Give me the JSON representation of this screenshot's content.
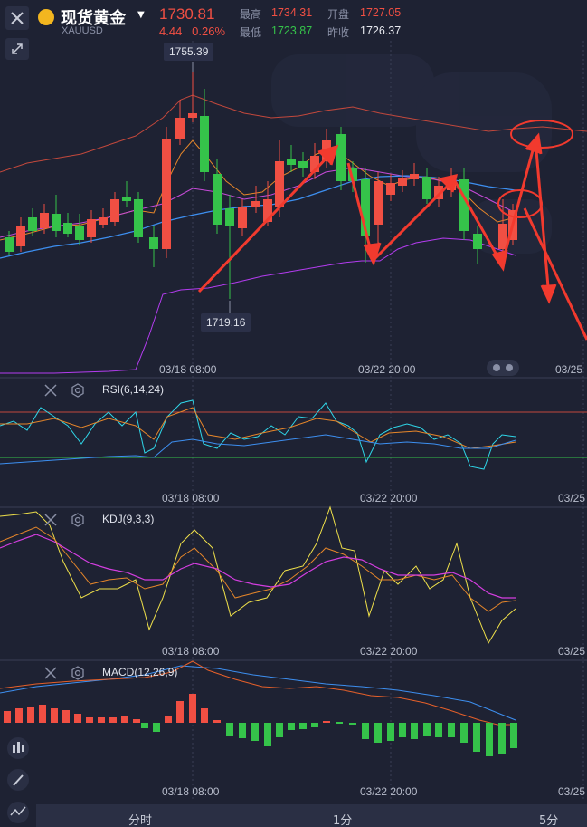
{
  "header": {
    "title": "现货黄金",
    "symbol": "XAUUSD",
    "price": "1730.81",
    "change": "4.44",
    "change_pct": "0.26%",
    "high_label": "最高",
    "high": "1734.31",
    "low_label": "最低",
    "low": "1723.87",
    "open_label": "开盘",
    "open": "1727.05",
    "prev_close_label": "昨收",
    "prev_close": "1726.37"
  },
  "main_chart": {
    "max_tag": "1755.39",
    "min_tag": "1719.16",
    "time_labels": [
      "03/18 08:00",
      "03/22 20:00",
      "03/25"
    ]
  },
  "rsi": {
    "label": "RSI(6,14,24)",
    "time_labels": [
      "03/18 08:00",
      "03/22 20:00",
      "03/25"
    ]
  },
  "kdj": {
    "label": "KDJ(9,3,3)",
    "time_labels": [
      "03/18 08:00",
      "03/22 20:00",
      "03/25"
    ]
  },
  "macd": {
    "label": "MACD(12,26,9)",
    "time_labels": [
      "03/18 08:00",
      "03/22 20:00",
      "03/25"
    ]
  },
  "bottom_tabs": [
    "分时",
    "1分",
    "5分"
  ],
  "colors": {
    "background": "#1e2233",
    "up": "#f04f43",
    "down": "#35c34a",
    "ma_orange": "#e6862a",
    "ma_blue": "#3d8ff0",
    "ma_purple": "#b43cf0",
    "band": "#c2483c",
    "arrow": "#f23a2e"
  },
  "icons": {
    "close": "close-icon",
    "collapse": "collapse-icon",
    "candles": "candlestick-icon",
    "draw": "pencil-icon",
    "indicator": "indicator-icon"
  }
}
